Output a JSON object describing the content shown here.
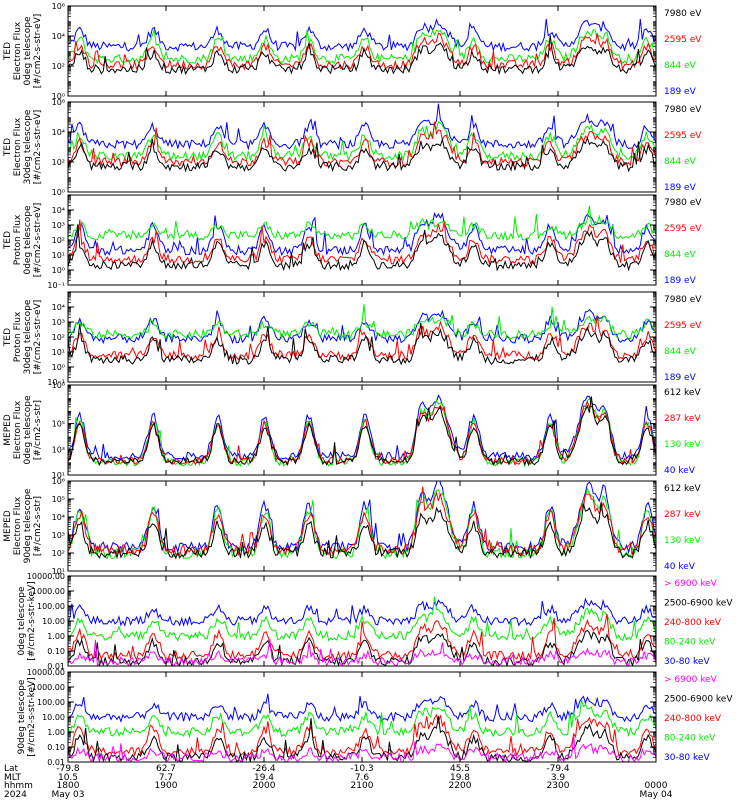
{
  "colors": {
    "blue": "#0000ff",
    "red": "#ff0000",
    "green": "#00ee00",
    "black": "#000000",
    "magenta": "#ff00ff",
    "axis": "#000000"
  },
  "chart_data": [
    {
      "type": "line",
      "scale": "log",
      "ylim": [
        1,
        1000000
      ],
      "yticks": [
        {
          "v": 1,
          "label": "10⁰"
        },
        {
          "v": 100,
          "label": "10²"
        },
        {
          "v": 10000,
          "label": "10⁴"
        },
        {
          "v": 1000000,
          "label": "10⁶"
        }
      ],
      "ylabel": [
        "TED",
        "Electron Flux",
        "0deg telescope",
        "[#/cm2-s-str-eV]"
      ],
      "series": [
        {
          "name": "7980 eV",
          "color": "black",
          "base": 60,
          "peak": 3000
        },
        {
          "name": "2595 eV",
          "color": "red",
          "base": 120,
          "peak": 10000
        },
        {
          "name": "844 eV",
          "color": "green",
          "base": 300,
          "peak": 30000
        },
        {
          "name": "189 eV",
          "color": "blue",
          "base": 2000,
          "peak": 100000
        }
      ]
    },
    {
      "type": "line",
      "scale": "log",
      "ylim": [
        1,
        1000000
      ],
      "yticks": [
        {
          "v": 1,
          "label": "10⁰"
        },
        {
          "v": 100,
          "label": "10²"
        },
        {
          "v": 10000,
          "label": "10⁴"
        },
        {
          "v": 1000000,
          "label": "10⁶"
        }
      ],
      "ylabel": [
        "TED",
        "Electron Flux",
        "30deg telescope",
        "[#/cm2-s-str-eV]"
      ],
      "series": [
        {
          "name": "7980 eV",
          "color": "black",
          "base": 50,
          "peak": 3000
        },
        {
          "name": "2595 eV",
          "color": "red",
          "base": 100,
          "peak": 10000
        },
        {
          "name": "844 eV",
          "color": "green",
          "base": 250,
          "peak": 30000
        },
        {
          "name": "189 eV",
          "color": "blue",
          "base": 1500,
          "peak": 100000
        }
      ]
    },
    {
      "type": "line",
      "scale": "log",
      "ylim": [
        0.1,
        100000
      ],
      "yticks": [
        {
          "v": 0.1,
          "label": "10⁻¹"
        },
        {
          "v": 1,
          "label": "10⁰"
        },
        {
          "v": 10,
          "label": "10¹"
        },
        {
          "v": 100,
          "label": "10²"
        },
        {
          "v": 1000,
          "label": "10³"
        },
        {
          "v": 10000,
          "label": "10⁴"
        }
      ],
      "ylabel": [
        "TED",
        "Proton Flux",
        "0deg telescope",
        "[#/cm2-s-str-eV]"
      ],
      "series": [
        {
          "name": "7980 eV",
          "color": "black",
          "base": 2,
          "peak": 300
        },
        {
          "name": "2595 eV",
          "color": "red",
          "base": 5,
          "peak": 700
        },
        {
          "name": "844 eV",
          "color": "green",
          "base": 200,
          "peak": 2000
        },
        {
          "name": "189 eV",
          "color": "blue",
          "base": 20,
          "peak": 6000
        }
      ]
    },
    {
      "type": "line",
      "scale": "log",
      "ylim": [
        0.1,
        100000
      ],
      "yticks": [
        {
          "v": 0.1,
          "label": "10⁻¹"
        },
        {
          "v": 1,
          "label": "10⁰"
        },
        {
          "v": 10,
          "label": "10¹"
        },
        {
          "v": 100,
          "label": "10²"
        },
        {
          "v": 1000,
          "label": "10³"
        },
        {
          "v": 10000,
          "label": "10⁴"
        }
      ],
      "ylabel": [
        "TED",
        "Proton Flux",
        "30deg telescope",
        "[#/cm2-s-str-eV]"
      ],
      "series": [
        {
          "name": "7980 eV",
          "color": "black",
          "base": 3,
          "peak": 300
        },
        {
          "name": "2595 eV",
          "color": "red",
          "base": 6,
          "peak": 700
        },
        {
          "name": "844 eV",
          "color": "green",
          "base": 150,
          "peak": 2000
        },
        {
          "name": "189 eV",
          "color": "blue",
          "base": 80,
          "peak": 6000
        }
      ]
    },
    {
      "type": "line",
      "scale": "log",
      "ylim": [
        10,
        100000000
      ],
      "yticks": [
        {
          "v": 10,
          "label": "10¹"
        },
        {
          "v": 1000,
          "label": "10³"
        },
        {
          "v": 100000,
          "label": "10⁵"
        },
        {
          "v": 100000000,
          "label": "10⁸"
        }
      ],
      "ylabel": [
        "MEPED",
        "Electron Flux",
        "0deg telescope",
        "[#/cm2-s-str]"
      ],
      "series": [
        {
          "name": "612 keV",
          "color": "black",
          "base": 120,
          "peak": 2000000
        },
        {
          "name": "287 keV",
          "color": "red",
          "base": 130,
          "peak": 5000000
        },
        {
          "name": "130 keV",
          "color": "green",
          "base": 100,
          "peak": 8000000
        },
        {
          "name": "40 keV",
          "color": "blue",
          "base": 300,
          "peak": 20000000
        }
      ]
    },
    {
      "type": "line",
      "scale": "log",
      "ylim": [
        10,
        1000000
      ],
      "yticks": [
        {
          "v": 10,
          "label": "10¹"
        },
        {
          "v": 100,
          "label": "10²"
        },
        {
          "v": 1000,
          "label": "10³"
        },
        {
          "v": 10000,
          "label": "10⁴"
        },
        {
          "v": 100000,
          "label": "10⁵"
        },
        {
          "v": 1000000,
          "label": "10⁶"
        }
      ],
      "ylabel": [
        "MEPED",
        "Electron Flux",
        "90deg telescope",
        "[#/cm2-s-str]"
      ],
      "series": [
        {
          "name": "612 keV",
          "color": "black",
          "base": 100,
          "peak": 30000
        },
        {
          "name": "287 keV",
          "color": "red",
          "base": 150,
          "peak": 200000
        },
        {
          "name": "130 keV",
          "color": "green",
          "base": 100,
          "peak": 400000
        },
        {
          "name": "40 keV",
          "color": "blue",
          "base": 200,
          "peak": 800000
        }
      ]
    },
    {
      "type": "line",
      "scale": "log",
      "ylim": [
        0.01,
        10000
      ],
      "yticks": [
        {
          "v": 0.01,
          "label": "0.01"
        },
        {
          "v": 0.1,
          "label": "0.10"
        },
        {
          "v": 1,
          "label": "1.00"
        },
        {
          "v": 10,
          "label": "10.00"
        },
        {
          "v": 100,
          "label": "100.00"
        },
        {
          "v": 1000,
          "label": "1000.00"
        },
        {
          "v": 10000,
          "label": "10000.00"
        }
      ],
      "ylabel": [
        "MEPED",
        "Proton Flux",
        "0deg telescope",
        "[#/cm2-s-str-keV]"
      ],
      "series": [
        {
          "name": "> 6900 keV",
          "color": "magenta",
          "base": 0.02,
          "peak": 0.1
        },
        {
          "name": "2500-6900 keV",
          "color": "black",
          "base": 0.02,
          "peak": 2
        },
        {
          "name": "240-800 keV",
          "color": "red",
          "base": 0.05,
          "peak": 10
        },
        {
          "name": "80-240 keV",
          "color": "green",
          "base": 1,
          "peak": 50
        },
        {
          "name": "30-80 keV",
          "color": "blue",
          "base": 10,
          "peak": 200
        }
      ]
    },
    {
      "type": "line",
      "scale": "log",
      "ylim": [
        0.01,
        10000
      ],
      "yticks": [
        {
          "v": 0.01,
          "label": "0.01"
        },
        {
          "v": 0.1,
          "label": "0.10"
        },
        {
          "v": 1,
          "label": "1.00"
        },
        {
          "v": 10,
          "label": "10.00"
        },
        {
          "v": 100,
          "label": "100.00"
        },
        {
          "v": 1000,
          "label": "1000.00"
        },
        {
          "v": 10000,
          "label": "10000.00"
        }
      ],
      "ylabel": [
        "MEPED",
        "Proton Flux",
        "90deg telescope",
        "[#/cm2-s-str-keV]"
      ],
      "series": [
        {
          "name": "> 6900 keV",
          "color": "magenta",
          "base": 0.02,
          "peak": 0.1
        },
        {
          "name": "2500-6900 keV",
          "color": "black",
          "base": 0.02,
          "peak": 2
        },
        {
          "name": "240-800 keV",
          "color": "red",
          "base": 0.05,
          "peak": 10
        },
        {
          "name": "80-240 keV",
          "color": "green",
          "base": 1,
          "peak": 50
        },
        {
          "name": "30-80 keV",
          "color": "blue",
          "base": 10,
          "peak": 200
        }
      ]
    }
  ],
  "x_axis": {
    "range": [
      "1800",
      "0000"
    ],
    "row_labels": [
      "Lat",
      "MLT",
      "hhmm",
      "2024"
    ],
    "ticks": [
      {
        "lat": "-79.8",
        "mlt": "10.5",
        "hhmm": "1800",
        "date": "May 03"
      },
      {
        "lat": "62.7",
        "mlt": "7.7",
        "hhmm": "1900",
        "date": ""
      },
      {
        "lat": "-26.4",
        "mlt": "19.4",
        "hhmm": "2000",
        "date": ""
      },
      {
        "lat": "-10.3",
        "mlt": "7.6",
        "hhmm": "2100",
        "date": ""
      },
      {
        "lat": "45.5",
        "mlt": "19.8",
        "hhmm": "2200",
        "date": ""
      },
      {
        "lat": "-79.4",
        "mlt": "3.9",
        "hhmm": "2300",
        "date": ""
      },
      {
        "lat": "",
        "mlt": "",
        "hhmm": "0000",
        "date": "May 04"
      }
    ]
  }
}
